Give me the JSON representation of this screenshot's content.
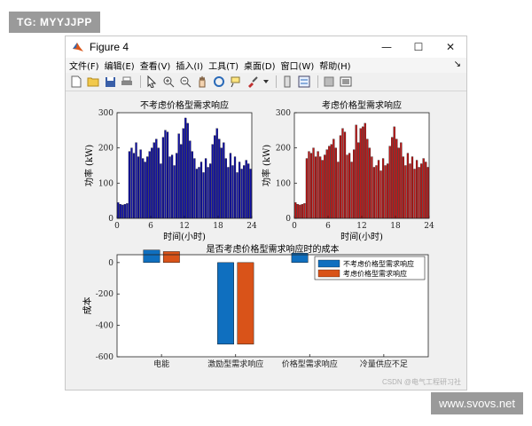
{
  "tags": {
    "top_left": "TG: MYYJJPP",
    "bottom_right": "www.svovs.net"
  },
  "window": {
    "title": "Figure 4",
    "controls": {
      "minimize": "—",
      "maximize": "☐",
      "close": "✕"
    }
  },
  "menu": {
    "items": [
      "文件(F)",
      "编辑(E)",
      "查看(V)",
      "插入(I)",
      "工具(T)",
      "桌面(D)",
      "窗口(W)",
      "帮助(H)"
    ],
    "overflow_arrow": "↘"
  },
  "toolbar": {
    "icons": [
      "new-figure-icon",
      "open-file-icon",
      "save-icon",
      "print-icon",
      "pointer-icon",
      "zoom-in-icon",
      "zoom-out-icon",
      "pan-icon",
      "rotate-icon",
      "data-cursor-icon",
      "brush-icon",
      "colorbar-icon",
      "legend-icon",
      "hide-plot-tools-icon",
      "show-plot-tools-icon"
    ]
  },
  "watermark": "CSDN @电气工程研习社",
  "chart_data": [
    {
      "type": "bar",
      "title": "不考虑价格型需求响应",
      "xlabel": "时间(小时)",
      "ylabel": "功率 (kW)",
      "xlim": [
        0,
        24
      ],
      "ylim": [
        0,
        300
      ],
      "xticks": [
        "0",
        "6",
        "12",
        "18",
        "24"
      ],
      "yticks": [
        "0",
        "100",
        "200",
        "300"
      ],
      "color": "#1010a8",
      "values": [
        45,
        40,
        38,
        40,
        42,
        190,
        200,
        185,
        215,
        175,
        195,
        170,
        160,
        175,
        190,
        200,
        215,
        225,
        200,
        155,
        230,
        250,
        245,
        175,
        180,
        150,
        185,
        240,
        210,
        255,
        285,
        270,
        220,
        190,
        170,
        140,
        145,
        160,
        130,
        170,
        145,
        155,
        210,
        235,
        255,
        225,
        200,
        215,
        170,
        145,
        185,
        150,
        175,
        130,
        160,
        140,
        150,
        165,
        155,
        140
      ]
    },
    {
      "type": "bar",
      "title": "考虑价格型需求响应",
      "xlabel": "时间(小时)",
      "ylabel": "功率 (kW)",
      "xlim": [
        0,
        24
      ],
      "ylim": [
        0,
        300
      ],
      "xticks": [
        "0",
        "6",
        "12",
        "18",
        "24"
      ],
      "yticks": [
        "0",
        "100",
        "200",
        "300"
      ],
      "color": "#c01818",
      "values": [
        45,
        40,
        38,
        40,
        42,
        170,
        190,
        185,
        200,
        175,
        190,
        175,
        165,
        180,
        195,
        205,
        210,
        225,
        200,
        160,
        235,
        255,
        245,
        180,
        185,
        160,
        195,
        265,
        215,
        255,
        260,
        270,
        225,
        200,
        175,
        145,
        150,
        165,
        135,
        170,
        150,
        155,
        205,
        230,
        260,
        225,
        200,
        215,
        175,
        150,
        185,
        155,
        175,
        140,
        165,
        145,
        155,
        170,
        160,
        145
      ]
    },
    {
      "type": "bar",
      "title": "是否考虑价格型需求响应时的成本",
      "xlabel": "",
      "ylabel": "成本",
      "ylim": [
        -600,
        50
      ],
      "yticks": [
        "0",
        "-200",
        "-400",
        "-600"
      ],
      "categories": [
        "电能",
        "激励型需求响应",
        "价格型需求响应",
        "冷量供应不足"
      ],
      "series": [
        {
          "name": "不考虑价格型需求响应",
          "color": "#0f6fbf",
          "values": [
            80,
            -520,
            60,
            0
          ]
        },
        {
          "name": "考虑价格型需求响应",
          "color": "#d95319",
          "values": [
            70,
            -520,
            0,
            0
          ]
        }
      ],
      "legend": "top-right"
    }
  ]
}
